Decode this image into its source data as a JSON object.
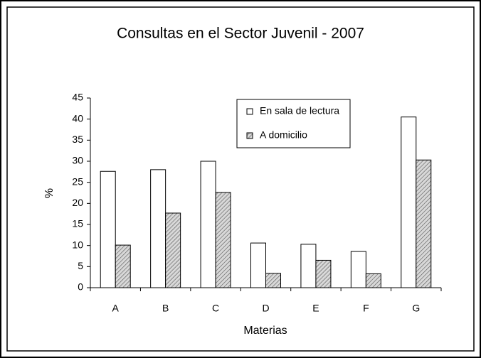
{
  "chart_data": {
    "type": "bar",
    "title": "Consultas en el Sector Juvenil - 2007",
    "xlabel": "Materias",
    "ylabel": "%",
    "categories": [
      "A",
      "B",
      "C",
      "D",
      "E",
      "F",
      "G"
    ],
    "series": [
      {
        "name": "En sala de lectura",
        "color": "#ffffff",
        "values": [
          27.6,
          28.0,
          30.0,
          10.6,
          10.3,
          8.6,
          40.5
        ]
      },
      {
        "name": "A domicilio",
        "color": "hatch",
        "values": [
          10.1,
          17.7,
          22.6,
          3.4,
          6.5,
          3.3,
          30.3
        ]
      }
    ],
    "ylim": [
      0,
      45
    ],
    "yticks": [
      0,
      5,
      10,
      15,
      20,
      25,
      30,
      35,
      40,
      45
    ],
    "grid": false,
    "legend": "upper right"
  }
}
